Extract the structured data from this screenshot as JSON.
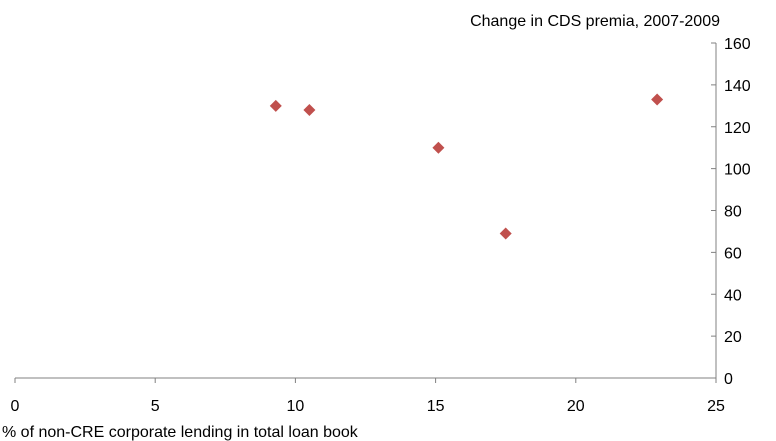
{
  "chart_data": {
    "type": "scatter",
    "title": "",
    "ylabel": "Change in CDS premia, 2007-2009",
    "xlabel": "% of non-CRE corporate lending in total loan book",
    "xlim": [
      0,
      25
    ],
    "ylim": [
      0,
      160
    ],
    "x_ticks": [
      0,
      5,
      10,
      15,
      20,
      25
    ],
    "y_ticks": [
      0,
      20,
      40,
      60,
      80,
      100,
      120,
      140,
      160
    ],
    "y_axis_side": "right",
    "grid": false,
    "legend": "none",
    "marker": "diamond",
    "marker_color": "#c0504d",
    "series": [
      {
        "points": [
          {
            "x": 9.3,
            "y": 130
          },
          {
            "x": 10.5,
            "y": 128
          },
          {
            "x": 15.1,
            "y": 110
          },
          {
            "x": 17.5,
            "y": 69
          },
          {
            "x": 22.9,
            "y": 133
          }
        ]
      }
    ]
  }
}
